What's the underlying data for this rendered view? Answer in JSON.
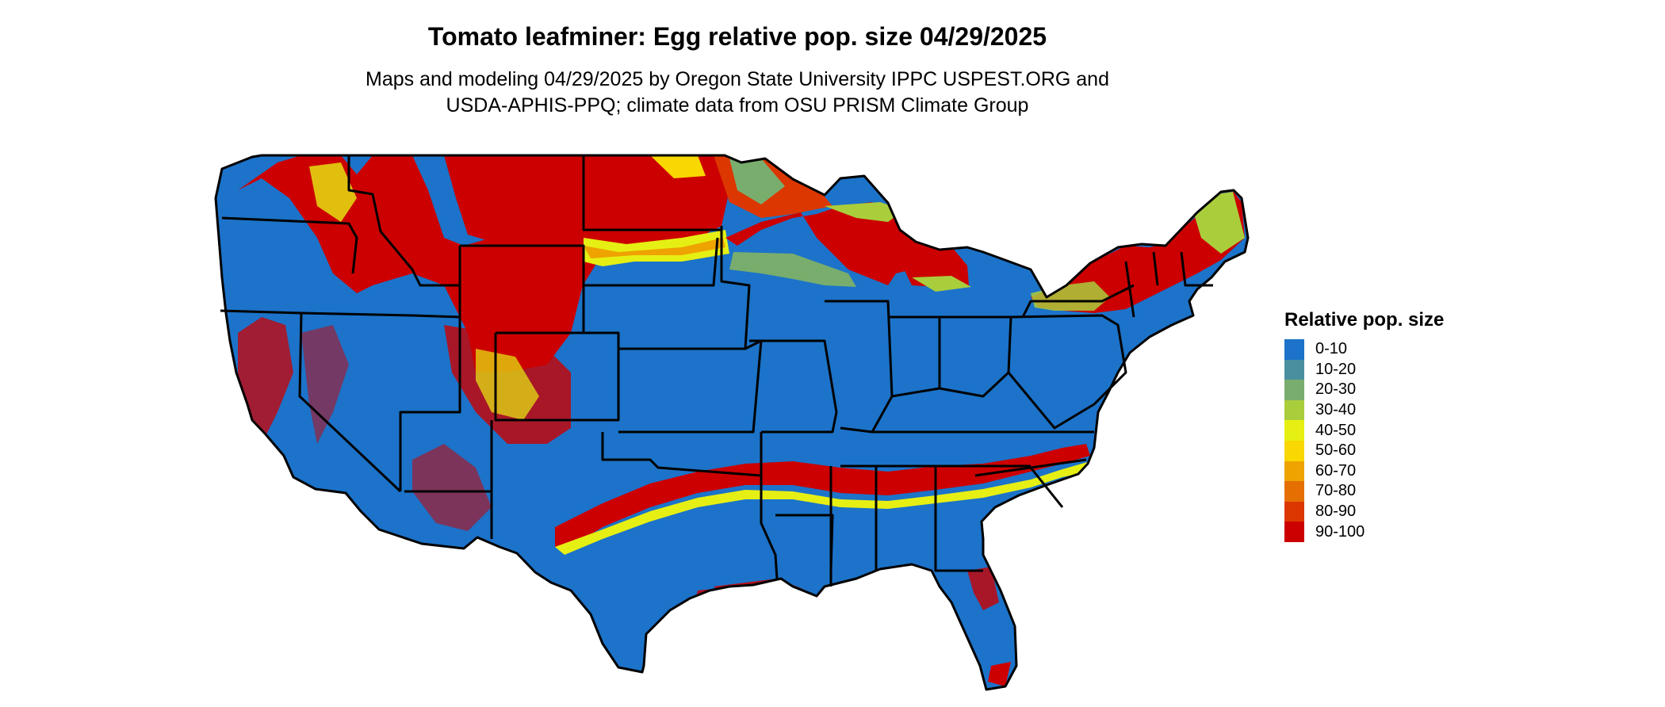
{
  "title": "Tomato leafminer: Egg relative pop. size 04/29/2025",
  "subtitle_line1": "Maps and modeling 04/29/2025 by Oregon State University IPPC USPEST.ORG and",
  "subtitle_line2": "USDA-APHIS-PPQ; climate data from OSU PRISM Climate Group",
  "legend": {
    "title": "Relative pop. size",
    "items": [
      {
        "label": "0-10",
        "color": "#1c73c9"
      },
      {
        "label": "10-20",
        "color": "#4a8fa0"
      },
      {
        "label": "20-30",
        "color": "#79ad6e"
      },
      {
        "label": "30-40",
        "color": "#aacd3c"
      },
      {
        "label": "40-50",
        "color": "#e6ef13"
      },
      {
        "label": "50-60",
        "color": "#f9d700"
      },
      {
        "label": "60-70",
        "color": "#eea300"
      },
      {
        "label": "70-80",
        "color": "#e56f00"
      },
      {
        "label": "80-90",
        "color": "#dc3700"
      },
      {
        "label": "90-100",
        "color": "#cc0000"
      }
    ]
  },
  "map": {
    "region": "conterminous-united-states",
    "base_color": "#1c73c9",
    "high_color": "#cc0000",
    "mid_color": "#dc3700",
    "low_color": "#e6ef13",
    "edge_color": "#79ad6e",
    "border_color": "#000000"
  }
}
